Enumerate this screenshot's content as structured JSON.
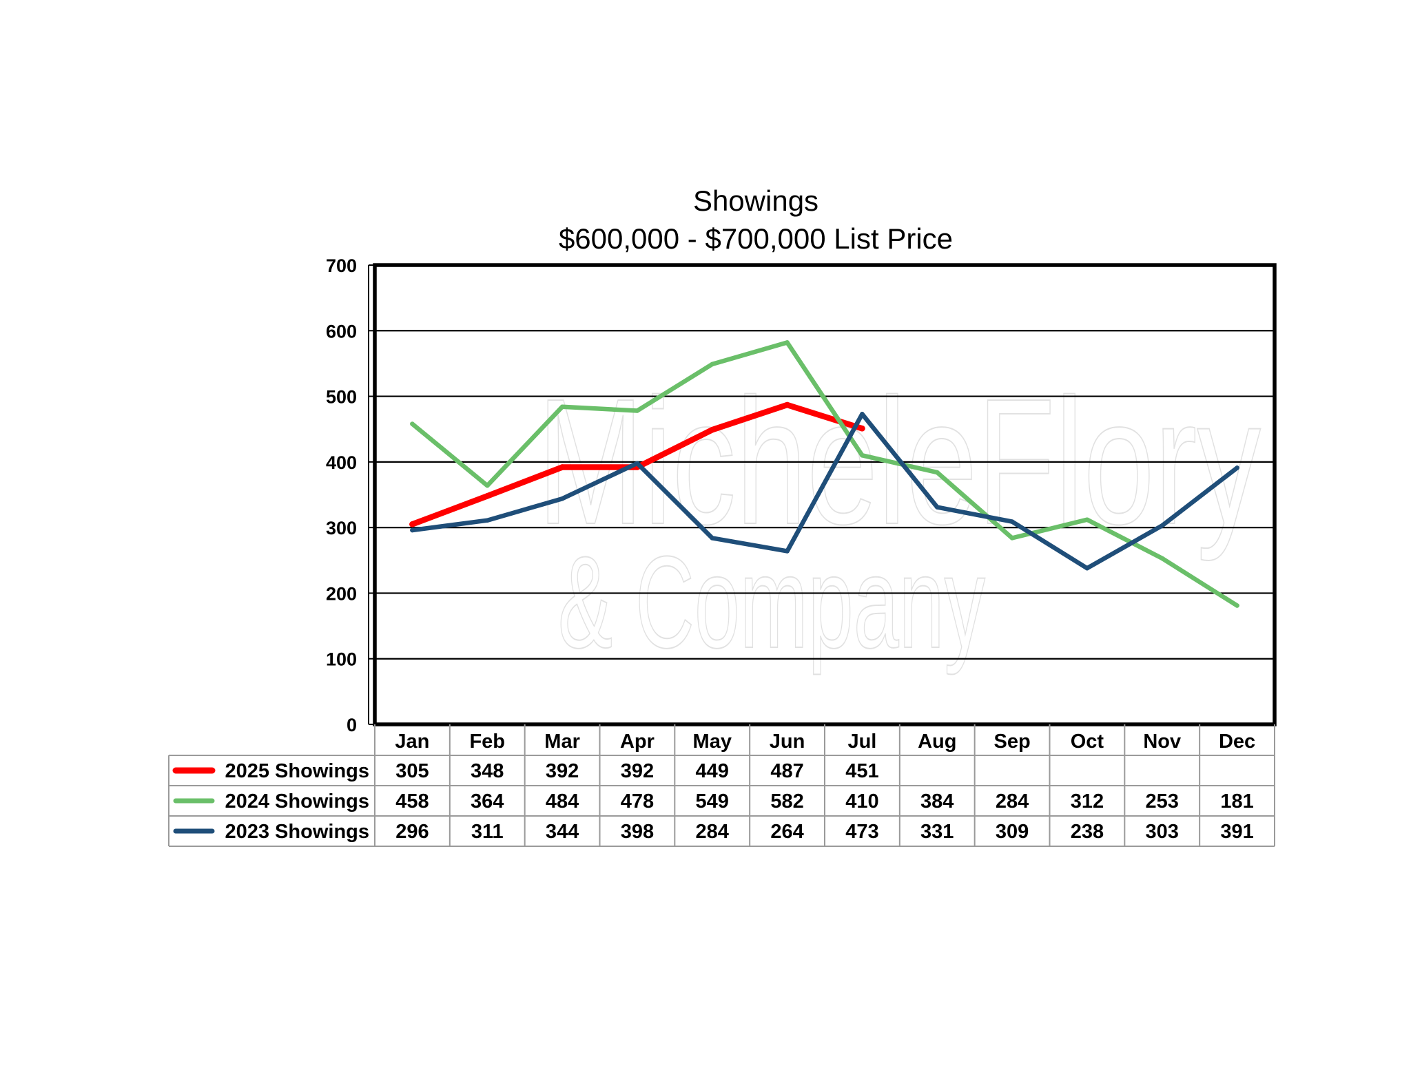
{
  "chart_data": {
    "type": "line",
    "title": "Showings",
    "subtitle": "$600,000 - $700,000 List Price",
    "categories": [
      "Jan",
      "Feb",
      "Mar",
      "Apr",
      "May",
      "Jun",
      "Jul",
      "Aug",
      "Sep",
      "Oct",
      "Nov",
      "Dec"
    ],
    "ylim": [
      0,
      700
    ],
    "yticks": [
      "0",
      "100",
      "200",
      "300",
      "400",
      "500",
      "600",
      "700"
    ],
    "grid": true,
    "legend_placement": "data-table-left",
    "series": [
      {
        "name": "2025 Showings",
        "color": "#ff0000",
        "values": [
          305,
          348,
          392,
          392,
          449,
          487,
          451,
          null,
          null,
          null,
          null,
          null
        ]
      },
      {
        "name": "2024 Showings",
        "color": "#6abf69",
        "values": [
          458,
          364,
          484,
          478,
          549,
          582,
          410,
          384,
          284,
          312,
          253,
          181
        ]
      },
      {
        "name": "2023 Showings",
        "color": "#1f4e79",
        "values": [
          296,
          311,
          344,
          398,
          284,
          264,
          473,
          331,
          309,
          238,
          303,
          391
        ]
      }
    ]
  },
  "watermark": {
    "line1": "MicheleFlory",
    "line2": "& Company"
  }
}
